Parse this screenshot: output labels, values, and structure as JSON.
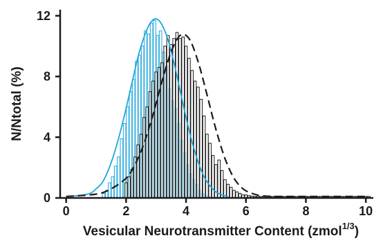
{
  "chart_data": {
    "type": "bar",
    "title": "",
    "xlabel": "Vesicular Neurotransmitter Content (zmol",
    "xlabel_superscript": "1/3",
    "xlabel_close": ")",
    "ylabel": "N/Ntotal (%)",
    "xlim": [
      -0.2,
      10.25
    ],
    "ylim": [
      0,
      12.4
    ],
    "x_ticks": [
      0,
      2,
      4,
      6,
      8,
      10
    ],
    "x_tick_labels": [
      "0",
      "2",
      "4",
      "6",
      "8",
      "10"
    ],
    "y_ticks": [
      0,
      4,
      8,
      12
    ],
    "y_tick_labels": [
      "0",
      "4",
      "8",
      "12"
    ],
    "bin_width": 0.1,
    "grid": false,
    "legend": "none",
    "series": [
      {
        "style": "blue-outline-bars",
        "color": "#1ba6dc",
        "x": [
          1.25,
          1.35,
          1.45,
          1.55,
          1.65,
          1.75,
          1.85,
          1.95,
          2.05,
          2.15,
          2.25,
          2.35,
          2.45,
          2.55,
          2.65,
          2.75,
          2.85,
          2.95,
          3.05,
          3.15,
          3.25,
          3.35,
          3.45,
          3.55,
          3.65,
          3.75,
          3.85,
          3.95,
          4.05,
          4.15,
          4.25,
          4.35,
          4.45,
          4.55,
          4.65,
          4.75
        ],
        "values": [
          0.3,
          0.5,
          1.0,
          1.4,
          2.1,
          2.7,
          3.9,
          4.9,
          6.0,
          7.0,
          7.8,
          9.0,
          9.4,
          10.0,
          11.0,
          10.8,
          11.5,
          11.7,
          10.7,
          11.0,
          9.6,
          8.7,
          7.2,
          6.4,
          5.9,
          4.9,
          3.8,
          3.0,
          2.2,
          1.6,
          1.2,
          0.9,
          0.5,
          0.3,
          0.2,
          0.1
        ]
      },
      {
        "style": "black-outline-bars",
        "color": "#1a1a1a",
        "x": [
          2.0,
          2.1,
          2.2,
          2.3,
          2.4,
          2.5,
          2.6,
          2.7,
          2.8,
          2.9,
          3.0,
          3.1,
          3.2,
          3.3,
          3.4,
          3.5,
          3.6,
          3.7,
          3.8,
          3.9,
          4.0,
          4.1,
          4.2,
          4.3,
          4.4,
          4.5,
          4.6,
          4.7,
          4.8,
          4.9,
          5.0,
          5.1,
          5.2,
          5.3,
          5.4,
          5.5,
          5.6,
          5.7,
          5.8,
          5.9,
          6.0,
          6.1,
          6.2,
          6.3,
          6.4,
          6.5,
          6.6,
          6.7,
          6.8,
          6.9,
          7.0,
          7.1,
          7.2,
          7.3,
          7.4,
          7.5,
          7.6,
          7.7,
          7.8,
          7.9,
          8.0,
          8.1,
          8.2,
          8.3,
          8.4,
          8.5,
          8.6,
          8.7,
          8.8,
          8.9,
          9.0,
          9.1,
          9.2,
          9.3,
          9.4,
          9.5,
          9.6,
          9.7,
          9.8,
          9.9,
          10.0,
          10.1
        ],
        "values": [
          1.0,
          1.4,
          1.9,
          2.7,
          3.5,
          4.2,
          5.3,
          6.0,
          7.0,
          7.7,
          8.3,
          8.6,
          8.9,
          10.0,
          10.7,
          10.1,
          10.5,
          10.9,
          10.5,
          10.6,
          10.0,
          9.2,
          8.4,
          7.7,
          7.3,
          6.5,
          5.4,
          4.2,
          3.6,
          2.8,
          2.2,
          2.5,
          1.8,
          1.2,
          0.9,
          0.7,
          0.5,
          0.4,
          0.3,
          0.2,
          0.2,
          0.15,
          0.12,
          0.1,
          0.1,
          0.1,
          0.1,
          0.1,
          0.1,
          0.1,
          0.1,
          0.1,
          0.1,
          0.1,
          0.1,
          0.1,
          0.1,
          0.1,
          0.1,
          0.1,
          0.1,
          0.1,
          0.1,
          0.1,
          0.1,
          0.1,
          0.1,
          0.1,
          0.1,
          0.1,
          0.1,
          0.1,
          0.1,
          0.1,
          0.1,
          0.1,
          0.1,
          0.1,
          0.1,
          0.1,
          0.1,
          0.1
        ]
      },
      {
        "style": "blue-solid-fit",
        "color": "#1ba6dc",
        "type": "line",
        "x": [
          0.0,
          0.4,
          0.8,
          1.0,
          1.2,
          1.4,
          1.6,
          1.8,
          2.0,
          2.2,
          2.4,
          2.6,
          2.8,
          3.0,
          3.2,
          3.4,
          3.6,
          3.8,
          4.0,
          4.2,
          4.4,
          4.6,
          4.8,
          5.0,
          5.2,
          5.4
        ],
        "values": [
          0.1,
          0.15,
          0.3,
          0.6,
          1.0,
          1.8,
          2.9,
          4.3,
          5.9,
          7.6,
          9.3,
          10.6,
          11.5,
          11.8,
          11.4,
          10.4,
          8.9,
          7.1,
          5.3,
          3.7,
          2.4,
          1.4,
          0.8,
          0.4,
          0.2,
          0.1
        ]
      },
      {
        "style": "black-dashed-fit",
        "color": "#1a1a1a",
        "type": "line",
        "x": [
          0.0,
          1.0,
          1.5,
          2.0,
          2.3,
          2.6,
          2.9,
          3.2,
          3.5,
          3.8,
          4.1,
          4.4,
          4.7,
          5.0,
          5.3,
          5.6,
          5.9,
          6.2,
          6.5,
          7.0,
          8.0,
          9.0,
          10.1
        ],
        "values": [
          0.1,
          0.25,
          0.6,
          1.3,
          2.2,
          3.6,
          5.5,
          7.7,
          9.6,
          10.7,
          10.5,
          9.0,
          6.8,
          4.5,
          2.6,
          1.3,
          0.6,
          0.3,
          0.15,
          0.1,
          0.1,
          0.1,
          0.1
        ]
      }
    ]
  }
}
